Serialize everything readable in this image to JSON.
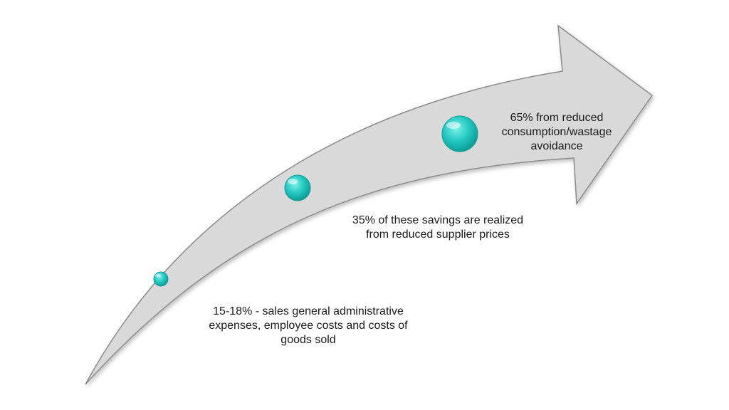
{
  "arrow": {
    "fill": "#d9d9d9",
    "stroke": "#8c8c8c"
  },
  "bubbles": [
    {
      "name": "small-bubble",
      "color": "#22c9c1"
    },
    {
      "name": "medium-bubble",
      "color": "#22c9c1"
    },
    {
      "name": "large-bubble",
      "color": "#22c9c1"
    }
  ],
  "labels": [
    {
      "lines": [
        "15-18% - sales general administrative",
        "expenses, employee costs and costs of",
        "goods sold"
      ]
    },
    {
      "lines": [
        "35% of these savings are realized",
        "from reduced supplier prices"
      ]
    },
    {
      "lines": [
        "65% from reduced",
        "consumption/wastage",
        "avoidance"
      ]
    }
  ]
}
